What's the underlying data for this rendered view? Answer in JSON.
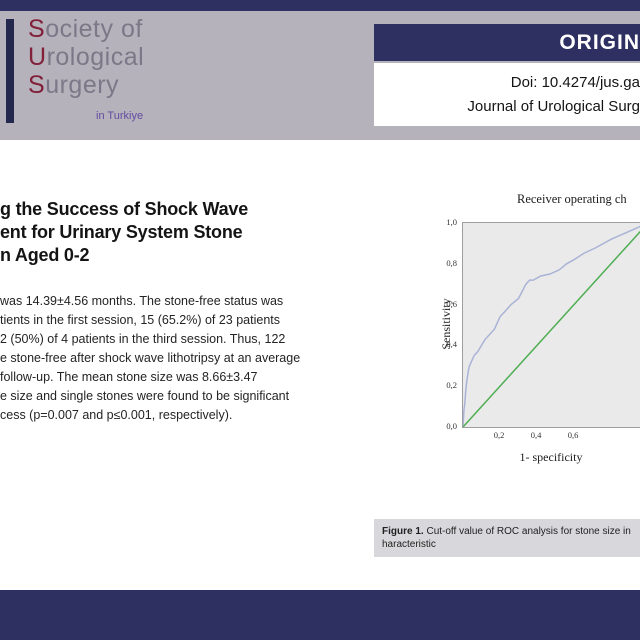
{
  "header": {
    "logo": {
      "line1_initial": "S",
      "line1_rest": "ociety of",
      "line2_initial": "U",
      "line2_rest": "rological",
      "line3_initial": "S",
      "line3_rest": "urgery",
      "tagline": "in Turkiye"
    },
    "article_type": "ORIGIN",
    "doi": "Doi: 10.4274/jus.ga",
    "journal": "Journal of Urological Surg"
  },
  "article": {
    "title_lines": [
      "g the Success of Shock Wave",
      "ent for Urinary System Stone",
      "n Aged 0-2"
    ],
    "abstract_lines": [
      "was 14.39±4.56 months. The stone-free status was",
      "tients in the first session, 15 (65.2%) of 23 patients",
      "2 (50%) of 4 patients in the third session. Thus, 122",
      "e stone-free after shock wave lithotripsy at an average",
      "follow-up. The mean stone size was 8.66±3.47",
      "e size and single stones were found to be significant",
      "cess (p=0.007 and p≤0.001, respectively)."
    ]
  },
  "figure": {
    "caption_label": "Figure 1.",
    "caption_line1": "Cut-off value of ROC analysis for stone size in",
    "caption_line2": "haracteristic"
  },
  "chart_data": {
    "type": "line",
    "title": "Receiver operating ch",
    "xlabel": "1- specificity",
    "ylabel": "Sensitivity",
    "xlim": [
      0,
      1
    ],
    "ylim": [
      0,
      1
    ],
    "grid": false,
    "legend": "none",
    "x_ticks": [
      "0,2",
      "0,4",
      "0,6"
    ],
    "y_ticks": [
      "1,0",
      "0,8",
      "0,6",
      "0,4",
      "0,2",
      "0,0"
    ],
    "plot_background": "#eaeaea",
    "series": [
      {
        "name": "roc-curve",
        "color": "#aab3d6",
        "x": [
          0,
          0.005,
          0.01,
          0.015,
          0.02,
          0.03,
          0.035,
          0.05,
          0.06,
          0.08,
          0.1,
          0.12,
          0.14,
          0.17,
          0.2,
          0.23,
          0.26,
          0.3,
          0.34,
          0.36,
          0.38,
          0.42,
          0.47,
          0.52,
          0.56,
          0.6,
          0.65,
          0.72,
          0.8,
          0.9,
          1.0
        ],
        "y": [
          0,
          0.08,
          0.12,
          0.18,
          0.22,
          0.28,
          0.3,
          0.33,
          0.35,
          0.37,
          0.4,
          0.43,
          0.45,
          0.48,
          0.54,
          0.57,
          0.6,
          0.63,
          0.7,
          0.72,
          0.72,
          0.74,
          0.75,
          0.77,
          0.8,
          0.82,
          0.85,
          0.88,
          0.92,
          0.96,
          1.0
        ]
      },
      {
        "name": "reference-line",
        "color": "#4fae52",
        "x": [
          0,
          1
        ],
        "y": [
          0,
          1
        ]
      }
    ]
  },
  "colors": {
    "navy": "#2d3061",
    "header_gray": "#b5b2bc",
    "caption_gray": "#d8d7db",
    "logo_accent": "#82203a",
    "logo_gray": "#7c7887",
    "tagline_purple": "#5f4da0"
  }
}
